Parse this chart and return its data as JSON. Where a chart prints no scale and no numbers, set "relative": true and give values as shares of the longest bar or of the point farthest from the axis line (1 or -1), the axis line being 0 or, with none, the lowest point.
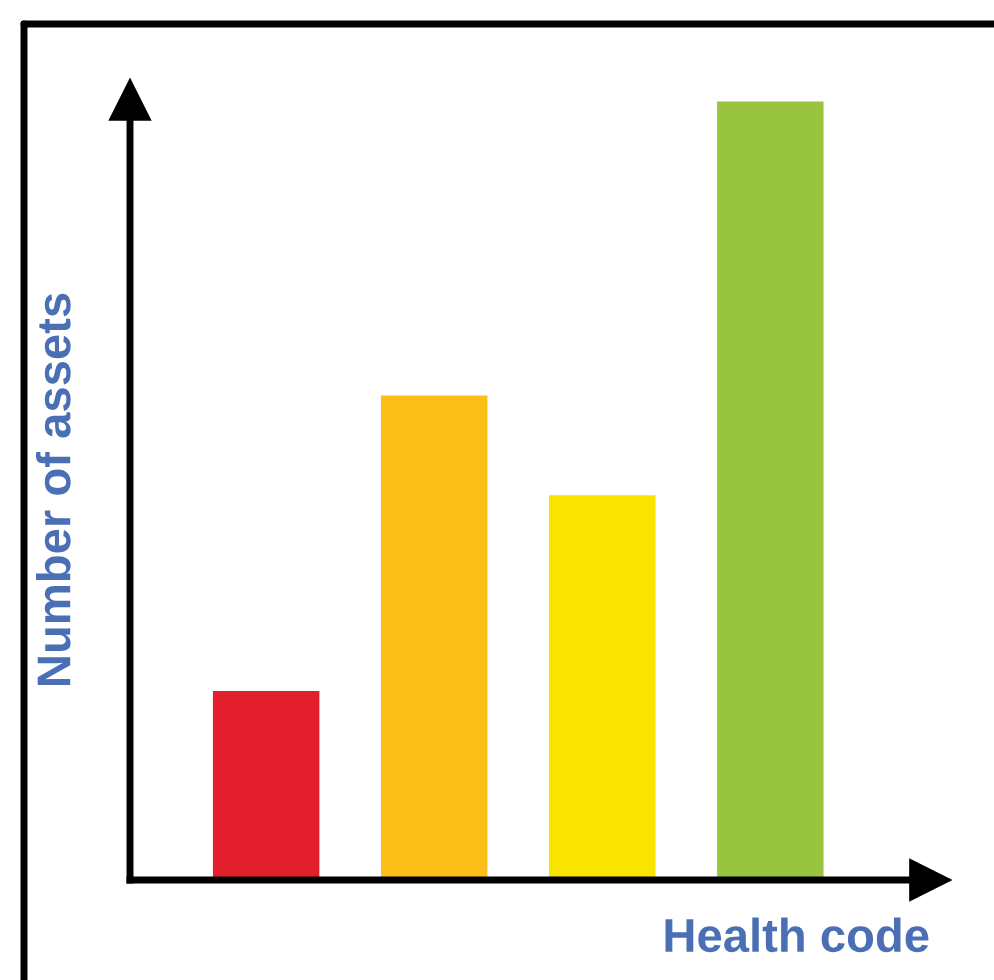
{
  "chart_data": {
    "type": "bar",
    "relative": true,
    "xlabel": "Health code",
    "ylabel": "Number of assets",
    "categories": [
      null,
      null,
      null,
      null
    ],
    "values": [
      0.244,
      0.623,
      0.495,
      1
    ],
    "colors": [
      "#e31e2d",
      "#fbbf17",
      "#f9e300",
      "#99c440"
    ],
    "grid": false,
    "legend": false
  }
}
